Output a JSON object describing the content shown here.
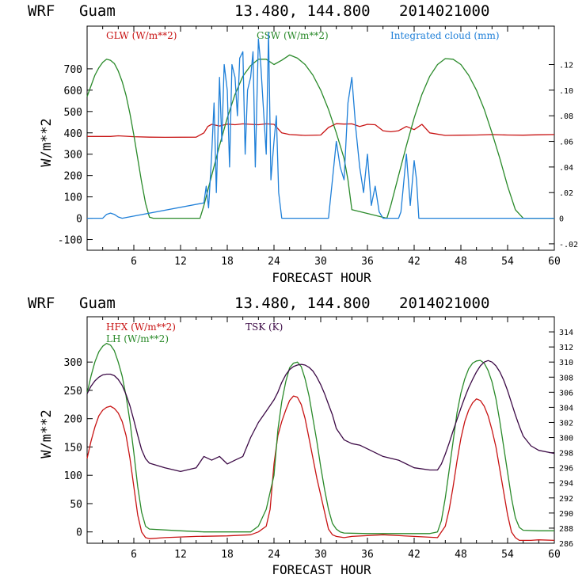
{
  "header": {
    "model": "WRF",
    "location": "Guam",
    "coords": "13.480, 144.800",
    "init": "2014021000"
  },
  "colors": {
    "red": "#c81414",
    "green": "#2a8a2a",
    "blue": "#1e7fd8",
    "purple": "#3c0a46"
  },
  "chart_data": [
    {
      "type": "line",
      "title": "WRF  Guam  13.480, 144.800  2014021000",
      "xlabel": "FORECAST HOUR",
      "ylabel": "W/m**2",
      "xlim": [
        0,
        60
      ],
      "ylim": [
        -150,
        900
      ],
      "y2lim": [
        -0.025,
        0.15
      ],
      "x_ticks": [
        6,
        12,
        18,
        24,
        30,
        36,
        42,
        48,
        54,
        60
      ],
      "y_ticks": [
        -100,
        0,
        100,
        200,
        300,
        400,
        500,
        600,
        700
      ],
      "y2_ticks": [
        -0.02,
        0,
        0.02,
        0.04,
        0.06,
        0.08,
        0.1,
        0.12
      ],
      "x_tick_labels": [
        "6",
        "12",
        "18",
        "24",
        "30",
        "36",
        "42",
        "48",
        "54",
        "60"
      ],
      "y_tick_labels": [
        "-100",
        "0",
        "100",
        "200",
        "300",
        "400",
        "500",
        "600",
        "700"
      ],
      "y2_tick_labels": [
        "-.02",
        "0",
        ".02",
        ".04",
        ".06",
        ".08",
        ".10",
        ".12"
      ],
      "legend": [
        {
          "label": "GLW (W/m**2)",
          "color": "#c81414"
        },
        {
          "label": "GSW (W/m**2)",
          "color": "#2a8a2a"
        },
        {
          "label": "Integrated cloud (mm)",
          "color": "#1e7fd8"
        }
      ],
      "series": [
        {
          "name": "GLW (W/m**2)",
          "axis": "left",
          "x": [
            0,
            3,
            4,
            6,
            8,
            10,
            14,
            15,
            15.5,
            16,
            17,
            18,
            19,
            20,
            21,
            22,
            23,
            24,
            25,
            26,
            28,
            30,
            31,
            32,
            33,
            34,
            35,
            36,
            37,
            38,
            39,
            40,
            41,
            42,
            43,
            44,
            46,
            48,
            50,
            52,
            54,
            56,
            58,
            60
          ],
          "y": [
            383,
            383,
            386,
            382,
            380,
            379,
            380,
            400,
            430,
            440,
            432,
            441,
            438,
            442,
            440,
            438,
            442,
            440,
            400,
            392,
            388,
            390,
            425,
            443,
            441,
            442,
            430,
            440,
            438,
            410,
            405,
            410,
            430,
            415,
            440,
            400,
            388,
            389,
            390,
            392,
            390,
            389,
            391,
            392
          ]
        },
        {
          "name": "GSW (W/m**2)",
          "axis": "left",
          "x": [
            0,
            0.5,
            1,
            1.5,
            2,
            2.5,
            3,
            3.5,
            4,
            4.5,
            5,
            5.5,
            6,
            6.5,
            7,
            7.5,
            8,
            8.5,
            14.5,
            15,
            16,
            17,
            18,
            19,
            20,
            21,
            22,
            23,
            24,
            25,
            26,
            27,
            28,
            29,
            30,
            31,
            32,
            33,
            33.5,
            34,
            38.5,
            39,
            40,
            41,
            42,
            43,
            44,
            45,
            46,
            47,
            48,
            49,
            50,
            51,
            52,
            53,
            54,
            55,
            56,
            56.5,
            57,
            60
          ],
          "y": [
            570,
            620,
            670,
            705,
            730,
            745,
            740,
            725,
            690,
            640,
            575,
            490,
            390,
            280,
            170,
            70,
            5,
            0,
            0,
            60,
            200,
            340,
            470,
            580,
            665,
            715,
            745,
            745,
            720,
            740,
            765,
            750,
            720,
            670,
            600,
            510,
            400,
            280,
            180,
            40,
            0,
            60,
            200,
            340,
            470,
            580,
            665,
            720,
            748,
            745,
            720,
            670,
            600,
            510,
            400,
            280,
            150,
            40,
            0,
            0,
            0,
            0
          ]
        },
        {
          "name": "Integrated cloud (mm)",
          "axis": "right",
          "x": [
            0,
            2,
            2.5,
            3,
            3.5,
            4,
            4.5,
            15,
            15.3,
            15.6,
            16,
            16.3,
            16.6,
            17,
            17.3,
            17.6,
            18,
            18.3,
            18.6,
            19,
            19.3,
            19.6,
            20,
            20.3,
            20.6,
            21,
            21.3,
            21.6,
            22,
            22.3,
            22.6,
            23,
            23.3,
            23.6,
            24,
            24.3,
            24.6,
            25,
            31,
            31.5,
            32,
            32.5,
            33,
            33.5,
            34,
            34.5,
            35,
            35.5,
            36,
            36.5,
            37,
            37.5,
            38,
            40,
            40.3,
            41,
            41.5,
            42,
            42.3,
            42.6,
            60
          ],
          "y": [
            0,
            0,
            0.003,
            0.004,
            0.003,
            0.001,
            0,
            0.012,
            0.025,
            0.008,
            0.05,
            0.09,
            0.02,
            0.11,
            0.06,
            0.12,
            0.1,
            0.04,
            0.12,
            0.11,
            0.08,
            0.125,
            0.13,
            0.05,
            0.1,
            0.11,
            0.13,
            0.04,
            0.14,
            0.12,
            0.09,
            0.05,
            0.145,
            0.03,
            0.06,
            0.08,
            0.02,
            0,
            0,
            0.03,
            0.06,
            0.04,
            0.03,
            0.09,
            0.11,
            0.07,
            0.04,
            0.02,
            0.05,
            0.01,
            0.025,
            0.005,
            0,
            0,
            0.005,
            0.05,
            0.01,
            0.045,
            0.03,
            0,
            0
          ]
        }
      ]
    },
    {
      "type": "line",
      "title": "WRF  Guam  13.480, 144.800  2014021000",
      "xlabel": "FORECAST HOUR",
      "ylabel": "W/m**2",
      "xlim": [
        0,
        60
      ],
      "ylim": [
        -20,
        380
      ],
      "y2lim": [
        286,
        316
      ],
      "x_ticks": [
        6,
        12,
        18,
        24,
        30,
        36,
        42,
        48,
        54,
        60
      ],
      "y_ticks": [
        0,
        50,
        100,
        150,
        200,
        250,
        300
      ],
      "y2_ticks": [
        286,
        288,
        290,
        292,
        294,
        296,
        298,
        300,
        302,
        304,
        306,
        308,
        310,
        312,
        314
      ],
      "x_tick_labels": [
        "6",
        "12",
        "18",
        "24",
        "30",
        "36",
        "42",
        "48",
        "54",
        "60"
      ],
      "y_tick_labels": [
        "0",
        "50",
        "100",
        "150",
        "200",
        "250",
        "300"
      ],
      "y2_tick_labels": [
        "286",
        "288",
        "290",
        "292",
        "294",
        "296",
        "298",
        "300",
        "302",
        "304",
        "306",
        "308",
        "310",
        "312",
        "314"
      ],
      "legend": [
        {
          "label": "HFX (W/m**2)",
          "color": "#c81414"
        },
        {
          "label": "LH  (W/m**2)",
          "color": "#2a8a2a"
        },
        {
          "label": "TSK (K)",
          "color": "#3c0a46"
        }
      ],
      "series": [
        {
          "name": "HFX (W/m**2)",
          "axis": "left",
          "x": [
            0,
            0.5,
            1,
            1.5,
            2,
            2.5,
            3,
            3.5,
            4,
            4.5,
            5,
            5.5,
            6,
            6.5,
            7,
            7.5,
            8,
            10,
            14,
            18,
            21,
            22,
            23,
            23.5,
            24,
            24.5,
            25,
            25.5,
            26,
            26.5,
            27,
            27.5,
            28,
            28.5,
            29,
            29.5,
            30,
            30.5,
            31,
            31.5,
            32,
            33,
            34,
            38,
            42,
            45,
            46,
            46.5,
            47,
            47.5,
            48,
            48.5,
            49,
            49.5,
            50,
            50.5,
            51,
            51.5,
            52,
            52.5,
            53,
            53.5,
            54,
            54.5,
            55,
            55.5,
            56,
            57,
            58,
            60
          ],
          "y": [
            130,
            160,
            185,
            205,
            215,
            220,
            222,
            218,
            210,
            195,
            170,
            130,
            80,
            30,
            0,
            -10,
            -12,
            -10,
            -8,
            -7,
            -5,
            0,
            10,
            40,
            120,
            170,
            195,
            215,
            232,
            240,
            238,
            225,
            200,
            165,
            130,
            95,
            65,
            35,
            5,
            -5,
            -8,
            -10,
            -8,
            -5,
            -8,
            -10,
            10,
            40,
            80,
            125,
            165,
            195,
            215,
            228,
            235,
            232,
            222,
            205,
            180,
            150,
            110,
            70,
            30,
            0,
            -10,
            -15,
            -15,
            -15,
            -14,
            -15
          ]
        },
        {
          "name": "LH  (W/m**2)",
          "axis": "left",
          "x": [
            0,
            0.5,
            1,
            1.5,
            2,
            2.5,
            3,
            3.5,
            4,
            4.5,
            5,
            5.5,
            6,
            6.5,
            7,
            7.5,
            8,
            12,
            15,
            18,
            21,
            22,
            23,
            24,
            24.5,
            25,
            25.5,
            26,
            26.5,
            27,
            27.5,
            28,
            28.5,
            29,
            29.5,
            30,
            30.5,
            31,
            31.5,
            32,
            32.5,
            33,
            36,
            40,
            44,
            45,
            45.5,
            46,
            46.5,
            47,
            47.5,
            48,
            48.5,
            49,
            49.5,
            50,
            50.5,
            51,
            51.5,
            52,
            52.5,
            53,
            53.5,
            54,
            54.5,
            55,
            55.5,
            56,
            58,
            60
          ],
          "y": [
            245,
            275,
            300,
            318,
            328,
            333,
            330,
            320,
            300,
            275,
            240,
            195,
            140,
            80,
            35,
            10,
            5,
            2,
            0,
            0,
            0,
            10,
            40,
            100,
            180,
            230,
            265,
            290,
            298,
            300,
            292,
            270,
            240,
            200,
            160,
            115,
            75,
            40,
            15,
            5,
            0,
            -2,
            -3,
            -3,
            -3,
            0,
            20,
            60,
            110,
            160,
            210,
            245,
            270,
            288,
            298,
            302,
            303,
            298,
            285,
            265,
            235,
            195,
            150,
            105,
            60,
            25,
            8,
            3,
            2,
            2
          ]
        },
        {
          "name": "TSK (K)",
          "axis": "right",
          "x": [
            0,
            0.5,
            1,
            1.5,
            2,
            2.5,
            3,
            3.5,
            4,
            4.5,
            5,
            5.5,
            6,
            6.5,
            7,
            7.5,
            8,
            10,
            12,
            14,
            15,
            16,
            17,
            18,
            19,
            20,
            21,
            22,
            23,
            24,
            24.5,
            25,
            25.5,
            26,
            26.5,
            27,
            27.5,
            28,
            28.5,
            29,
            29.5,
            30,
            30.5,
            31,
            31.5,
            32,
            33,
            34,
            35,
            36,
            38,
            40,
            42,
            44,
            45,
            45.5,
            46,
            46.5,
            47,
            47.5,
            48,
            48.5,
            49,
            49.5,
            50,
            50.5,
            51,
            51.5,
            52,
            52.5,
            53,
            53.5,
            54,
            54.5,
            55,
            55.5,
            56,
            57,
            58,
            60
          ],
          "y": [
            305.8,
            306.8,
            307.5,
            308.0,
            308.3,
            308.4,
            308.4,
            308.2,
            307.7,
            306.9,
            305.7,
            304.2,
            302.3,
            300.3,
            298.4,
            297.2,
            296.6,
            296.0,
            295.5,
            296.0,
            297.5,
            297.0,
            297.5,
            296.5,
            297.0,
            297.5,
            300.0,
            302.0,
            303.5,
            305.0,
            306.0,
            307.3,
            308.3,
            309.0,
            309.4,
            309.6,
            309.7,
            309.6,
            309.3,
            308.8,
            308.0,
            307.0,
            305.8,
            304.4,
            303.0,
            301.2,
            299.7,
            299.2,
            299.0,
            298.5,
            297.5,
            297.0,
            296.0,
            295.7,
            295.7,
            296.5,
            297.8,
            299.3,
            300.9,
            302.4,
            303.9,
            305.3,
            306.6,
            307.7,
            308.7,
            309.5,
            310.0,
            310.2,
            310.0,
            309.5,
            308.7,
            307.6,
            306.2,
            304.6,
            303.0,
            301.5,
            300.2,
            298.9,
            298.3,
            297.9
          ]
        }
      ]
    }
  ]
}
